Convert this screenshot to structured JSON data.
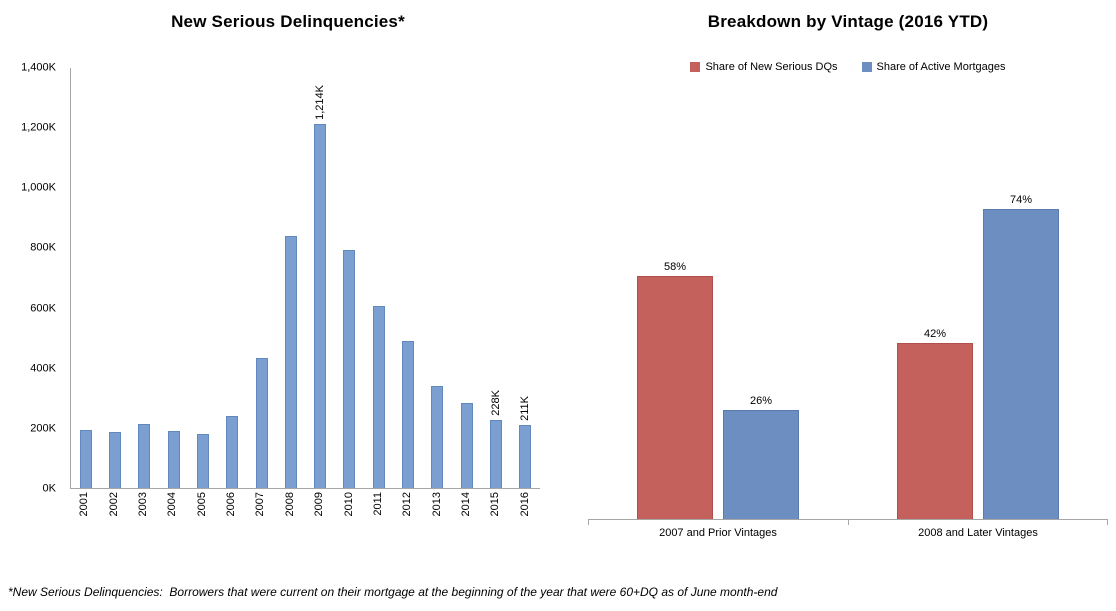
{
  "page": {
    "background": "#FFFFFF"
  },
  "footnote": "*New Serious Delinquencies:  Borrowers that were current on their mortgage at the beginning of the year that were 60+DQ as of June month-end",
  "chart_data": [
    {
      "type": "bar",
      "title": "New Serious Delinquencies*",
      "categories": [
        "2001",
        "2002",
        "2003",
        "2004",
        "2005",
        "2006",
        "2007",
        "2008",
        "2009",
        "2010",
        "2011",
        "2012",
        "2013",
        "2014",
        "2015",
        "2016"
      ],
      "values": [
        195,
        186,
        212,
        191,
        181,
        239,
        432,
        841,
        1214,
        792,
        607,
        489,
        341,
        282,
        228,
        211
      ],
      "unit": "K",
      "data_labels": [
        "",
        "",
        "",
        "",
        "",
        "",
        "",
        "",
        "1,214K",
        "",
        "",
        "",
        "",
        "",
        "228K",
        "211K"
      ],
      "ylim": [
        0,
        1400
      ],
      "yticks": [
        {
          "value": 0,
          "label": "0K"
        },
        {
          "value": 200,
          "label": "200K"
        },
        {
          "value": 400,
          "label": "400K"
        },
        {
          "value": 600,
          "label": "600K"
        },
        {
          "value": 800,
          "label": "800K"
        },
        {
          "value": 1000,
          "label": "1,000K"
        },
        {
          "value": 1200,
          "label": "1,200K"
        },
        {
          "value": 1400,
          "label": "1,400K"
        }
      ],
      "bar_color": "#7B9FD0",
      "bar_border_color": "#6189BE",
      "grid": false,
      "legend": "none",
      "x_label_rotation": 90,
      "data_label_rotation": 90
    },
    {
      "type": "bar",
      "title": "Breakdown by Vintage (2016 YTD)",
      "categories": [
        "2007 and Prior Vintages",
        "2008 and Later Vintages"
      ],
      "series": [
        {
          "name": "Share of New Serious DQs",
          "color": "#C4615D",
          "border_color": "#B14F4C",
          "values": [
            58,
            42
          ],
          "labels": [
            "58%",
            "42%"
          ]
        },
        {
          "name": "Share of Active Mortgages",
          "color": "#6D8EC0",
          "border_color": "#5A7BAD",
          "values": [
            26,
            74
          ],
          "labels": [
            "26%",
            "74%"
          ]
        }
      ],
      "ylim": [
        0,
        100
      ],
      "unit": "%",
      "grid": false,
      "legend_position": "top"
    }
  ]
}
